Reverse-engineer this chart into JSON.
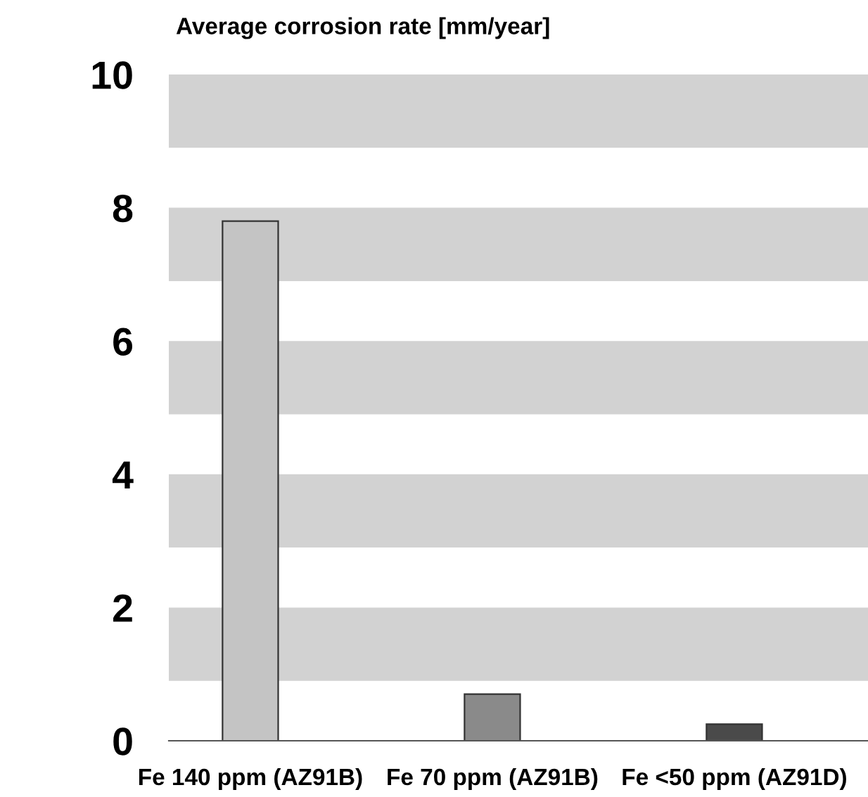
{
  "chart_data": {
    "type": "bar",
    "ylabel": "Average corrosion rate [mm/year]",
    "categories": [
      "Fe 140 ppm (AZ91B)",
      "Fe 70 ppm (AZ91B)",
      "Fe <50 ppm (AZ91D)"
    ],
    "values": [
      7.8,
      0.7,
      0.25
    ],
    "colors": [
      "#c4c4c4",
      "#8a8a8a",
      "#4a4a4a"
    ],
    "ylim": [
      0,
      10
    ],
    "yticks": [
      0,
      2,
      4,
      6,
      8,
      10
    ],
    "grid": false,
    "legend": false
  }
}
